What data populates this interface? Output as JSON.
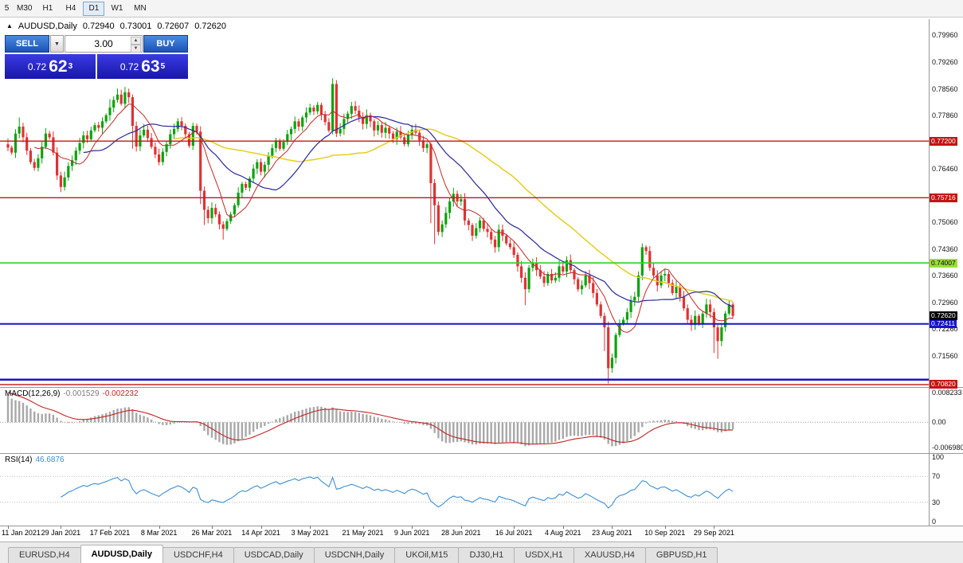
{
  "toolbar": {
    "buttons": [
      "5",
      "M30",
      "H1",
      "H4",
      "D1",
      "W1",
      "MN"
    ],
    "active": "D1"
  },
  "chart_title": {
    "symbol_period": "AUDUSD,Daily",
    "open": "0.72940",
    "high": "0.73001",
    "low": "0.72607",
    "close": "0.72620"
  },
  "one_click": {
    "sell_label": "SELL",
    "buy_label": "BUY",
    "volume": "3.00",
    "sell_prefix": "0.72",
    "sell_big": "62",
    "sell_sup": "3",
    "buy_prefix": "0.72",
    "buy_big": "63",
    "buy_sup": "5"
  },
  "tabs": {
    "items": [
      "EURUSD,H4",
      "AUDUSD,Daily",
      "USDCHF,H4",
      "USDCAD,Daily",
      "USDCNH,Daily",
      "UKOil,M15",
      "DJ30,H1",
      "USDX,H1",
      "XAUUSD,H4",
      "GBPUSD,H1"
    ],
    "active": "AUDUSD,Daily"
  },
  "chart_data": {
    "type": "candlestick",
    "symbol": "AUDUSD",
    "period": "Daily",
    "price_max": 0.80398,
    "price_min": 0.70756,
    "axis_ticks": [
      "0.79960",
      "0.79260",
      "0.78560",
      "0.77860",
      "0.76460",
      "0.75060",
      "0.74360",
      "0.73660",
      "0.72960",
      "0.72260",
      "0.71560"
    ],
    "hlines": [
      {
        "value": 0.772,
        "color": "#c41414",
        "width": 1.4,
        "label": "0.77200",
        "label_bg": "#c41414",
        "label_color": "#ffffff"
      },
      {
        "value": 0.75716,
        "color": "#c41414",
        "width": 1.4,
        "label": "0.75716",
        "label_bg": "#c41414",
        "label_color": "#ffffff"
      },
      {
        "value": 0.74007,
        "color": "#2ad42a",
        "width": 1.6,
        "label": "0.74007",
        "label_bg": "#97e03a",
        "label_color": "#000000"
      },
      {
        "value": 0.72411,
        "color": "#1515c8",
        "width": 2,
        "label": "0.72411",
        "label_bg": "#1515c8",
        "label_color": "#ffffff"
      },
      {
        "value": 0.7095,
        "color": "#1515c8",
        "width": 2.5,
        "label": null
      },
      {
        "value": 0.7082,
        "color": "#c41414",
        "width": 1.4,
        "label": "0.70820",
        "label_bg": "#c41414",
        "label_color": "#ffffff"
      }
    ],
    "current_price": {
      "value": 0.7262,
      "label": "0.72620",
      "label_bg": "#000000",
      "label_color": "#ffffff"
    },
    "dates": [
      {
        "label": "11 Jan 2021",
        "i": 0
      },
      {
        "label": "29 Jan 2021",
        "i": 14
      },
      {
        "label": "17 Feb 2021",
        "i": 27
      },
      {
        "label": "8 Mar 2021",
        "i": 40
      },
      {
        "label": "26 Mar 2021",
        "i": 54
      },
      {
        "label": "14 Apr 2021",
        "i": 67
      },
      {
        "label": "3 May 2021",
        "i": 80
      },
      {
        "label": "21 May 2021",
        "i": 94
      },
      {
        "label": "9 Jun 2021",
        "i": 107
      },
      {
        "label": "28 Jun 2021",
        "i": 120
      },
      {
        "label": "16 Jul 2021",
        "i": 134
      },
      {
        "label": "4 Aug 2021",
        "i": 147
      },
      {
        "label": "23 Aug 2021",
        "i": 160
      },
      {
        "label": "10 Sep 2021",
        "i": 174
      },
      {
        "label": "29 Sep 2021",
        "i": 187
      }
    ],
    "candles": {
      "first_open": 0.7712,
      "closes": [
        0.7703,
        0.769,
        0.774,
        0.7758,
        0.773,
        0.7695,
        0.7665,
        0.765,
        0.7675,
        0.7705,
        0.774,
        0.773,
        0.769,
        0.763,
        0.76,
        0.7625,
        0.7655,
        0.767,
        0.7695,
        0.7715,
        0.7735,
        0.7725,
        0.7748,
        0.7762,
        0.7755,
        0.7772,
        0.7788,
        0.7808,
        0.7828,
        0.7842,
        0.7818,
        0.7848,
        0.7835,
        0.776,
        0.7706,
        0.7735,
        0.775,
        0.7728,
        0.7705,
        0.7685,
        0.7665,
        0.7692,
        0.7712,
        0.7738,
        0.7752,
        0.7772,
        0.776,
        0.7738,
        0.7708,
        0.776,
        0.7745,
        0.759,
        0.754,
        0.7518,
        0.7545,
        0.7528,
        0.7502,
        0.749,
        0.751,
        0.7528,
        0.7552,
        0.7585,
        0.7608,
        0.7598,
        0.7622,
        0.7648,
        0.7665,
        0.764,
        0.7658,
        0.7682,
        0.7702,
        0.7722,
        0.77,
        0.7718,
        0.7738,
        0.7752,
        0.7772,
        0.7758,
        0.7782,
        0.7795,
        0.7808,
        0.7798,
        0.7815,
        0.779,
        0.777,
        0.7748,
        0.787,
        0.774,
        0.7752,
        0.7778,
        0.7792,
        0.7812,
        0.78,
        0.7782,
        0.7765,
        0.7788,
        0.7772,
        0.7748,
        0.7762,
        0.7742,
        0.7755,
        0.774,
        0.7726,
        0.7745,
        0.773,
        0.7712,
        0.7736,
        0.775,
        0.7742,
        0.7722,
        0.7702,
        0.7712,
        0.761,
        0.7552,
        0.7482,
        0.7502,
        0.7532,
        0.7562,
        0.7582,
        0.7562,
        0.7568,
        0.7512,
        0.75,
        0.7472,
        0.7492,
        0.7512,
        0.749,
        0.7482,
        0.7462,
        0.7442,
        0.7488,
        0.7472,
        0.7452,
        0.7442,
        0.7422,
        0.7392,
        0.7362,
        0.7332,
        0.7388,
        0.7402,
        0.7382,
        0.7365,
        0.7348,
        0.7372,
        0.7355,
        0.7362,
        0.7392,
        0.7378,
        0.7408,
        0.7382,
        0.7358,
        0.7332,
        0.7342,
        0.7368,
        0.7348,
        0.7322,
        0.7292,
        0.7262,
        0.7232,
        0.7125,
        0.7152,
        0.7212,
        0.7242,
        0.7252,
        0.7272,
        0.7302,
        0.7312,
        0.7368,
        0.7442,
        0.7432,
        0.7388,
        0.7368,
        0.7342,
        0.7368,
        0.7372,
        0.7348,
        0.7322,
        0.7338,
        0.7312,
        0.7282,
        0.7252,
        0.7238,
        0.7262,
        0.7242,
        0.7268,
        0.7292,
        0.7272,
        0.7232,
        0.7196,
        0.7232,
        0.7268,
        0.7292,
        0.7262
      ],
      "wick_overrides": [
        {
          "i": 3,
          "high": 0.7782
        },
        {
          "i": 27,
          "high": 0.783
        },
        {
          "i": 31,
          "high": 0.7862
        },
        {
          "i": 33,
          "low": 0.77
        },
        {
          "i": 51,
          "low": 0.7555
        },
        {
          "i": 52,
          "low": 0.75
        },
        {
          "i": 57,
          "low": 0.7462
        },
        {
          "i": 86,
          "high": 0.7885
        },
        {
          "i": 112,
          "low": 0.7505
        },
        {
          "i": 113,
          "low": 0.745
        },
        {
          "i": 137,
          "low": 0.729
        },
        {
          "i": 158,
          "low": 0.717
        },
        {
          "i": 159,
          "low": 0.7085
        },
        {
          "i": 168,
          "high": 0.7452
        },
        {
          "i": 187,
          "low": 0.7165
        },
        {
          "i": 188,
          "low": 0.715
        }
      ]
    },
    "ma": [
      {
        "period": 45,
        "color": "#e3cf1f",
        "width": 1.5
      },
      {
        "period": 21,
        "color": "#28289b",
        "width": 1.2
      },
      {
        "period": 8,
        "color": "#c62828",
        "width": 1
      }
    ],
    "macd": {
      "label": "MACD(12,26,9)",
      "value": "-0.001529",
      "signal_value": "-0.002232",
      "axis": [
        "0.008233",
        "0.00",
        "-0.006980"
      ],
      "max": 0.0095,
      "min": -0.0085
    },
    "rsi": {
      "label": "RSI(14)",
      "value": "46.6876",
      "axis": [
        "100",
        "70",
        "30",
        "0"
      ],
      "levels": [
        70,
        30
      ],
      "max": 105,
      "min": -5
    },
    "colors": {
      "up": "#0ba30b",
      "down": "#e03232",
      "macd_hist": "#a8a8a8",
      "macd_signal": "#c22424",
      "rsi_line": "#3c8fd4"
    }
  }
}
